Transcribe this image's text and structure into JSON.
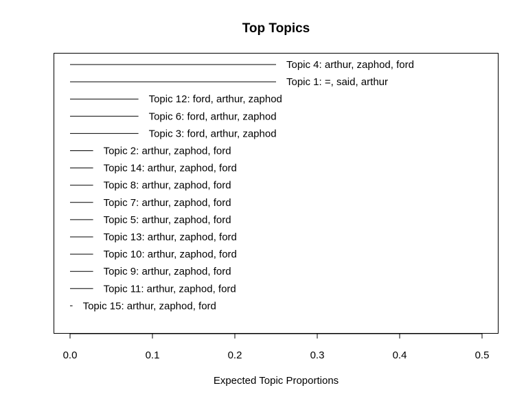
{
  "chart_data": {
    "type": "bar",
    "orientation": "horizontal",
    "title": "Top Topics",
    "xlabel": "Expected Topic Proportions",
    "ylabel": "",
    "xlim": [
      0,
      0.5
    ],
    "xticks": [
      "0.0",
      "0.1",
      "0.2",
      "0.3",
      "0.4",
      "0.5"
    ],
    "grid": false,
    "items": [
      {
        "label": "Topic 4: arthur, zaphod, ford",
        "value": 0.25
      },
      {
        "label": "Topic 1: =, said, arthur",
        "value": 0.25
      },
      {
        "label": "Topic 12: ford, arthur, zaphod",
        "value": 0.083
      },
      {
        "label": "Topic 6: ford, arthur, zaphod",
        "value": 0.083
      },
      {
        "label": "Topic 3: ford, arthur, zaphod",
        "value": 0.083
      },
      {
        "label": "Topic 2: arthur, zaphod, ford",
        "value": 0.028
      },
      {
        "label": "Topic 14: arthur, zaphod, ford",
        "value": 0.028
      },
      {
        "label": "Topic 8: arthur, zaphod, ford",
        "value": 0.028
      },
      {
        "label": "Topic 7: arthur, zaphod, ford",
        "value": 0.028
      },
      {
        "label": "Topic 5: arthur, zaphod, ford",
        "value": 0.028
      },
      {
        "label": "Topic 13: arthur, zaphod, ford",
        "value": 0.028
      },
      {
        "label": "Topic 10: arthur, zaphod, ford",
        "value": 0.028
      },
      {
        "label": "Topic 9: arthur, zaphod, ford",
        "value": 0.028
      },
      {
        "label": "Topic 11: arthur, zaphod, ford",
        "value": 0.028
      },
      {
        "label": "Topic 15: arthur, zaphod, ford",
        "value": 0.003
      }
    ]
  }
}
